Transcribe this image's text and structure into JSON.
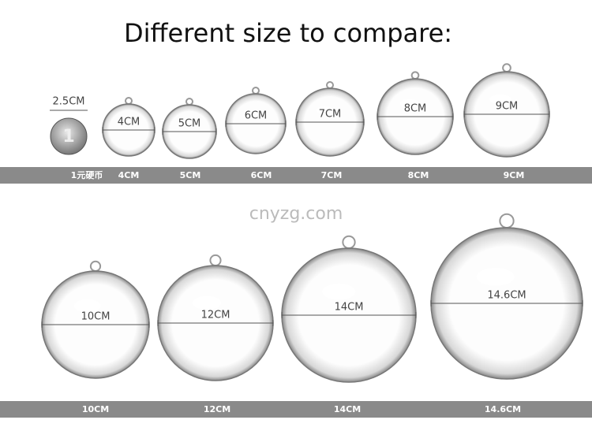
{
  "title": "Different size to compare:",
  "watermark": "cnyzg.com",
  "coin": {
    "size": "2.5CM",
    "caption": "1元硬币"
  },
  "row1": [
    {
      "size": "4CM",
      "caption": "4CM"
    },
    {
      "size": "5CM",
      "caption": "5CM"
    },
    {
      "size": "6CM",
      "caption": "6CM"
    },
    {
      "size": "7CM",
      "caption": "7CM"
    },
    {
      "size": "8CM",
      "caption": "8CM"
    },
    {
      "size": "9CM",
      "caption": "9CM"
    }
  ],
  "row2": [
    {
      "size": "10CM",
      "caption": "10CM"
    },
    {
      "size": "12CM",
      "caption": "12CM"
    },
    {
      "size": "14CM",
      "caption": "14CM"
    },
    {
      "size": "14.6CM",
      "caption": "14.6CM"
    }
  ]
}
